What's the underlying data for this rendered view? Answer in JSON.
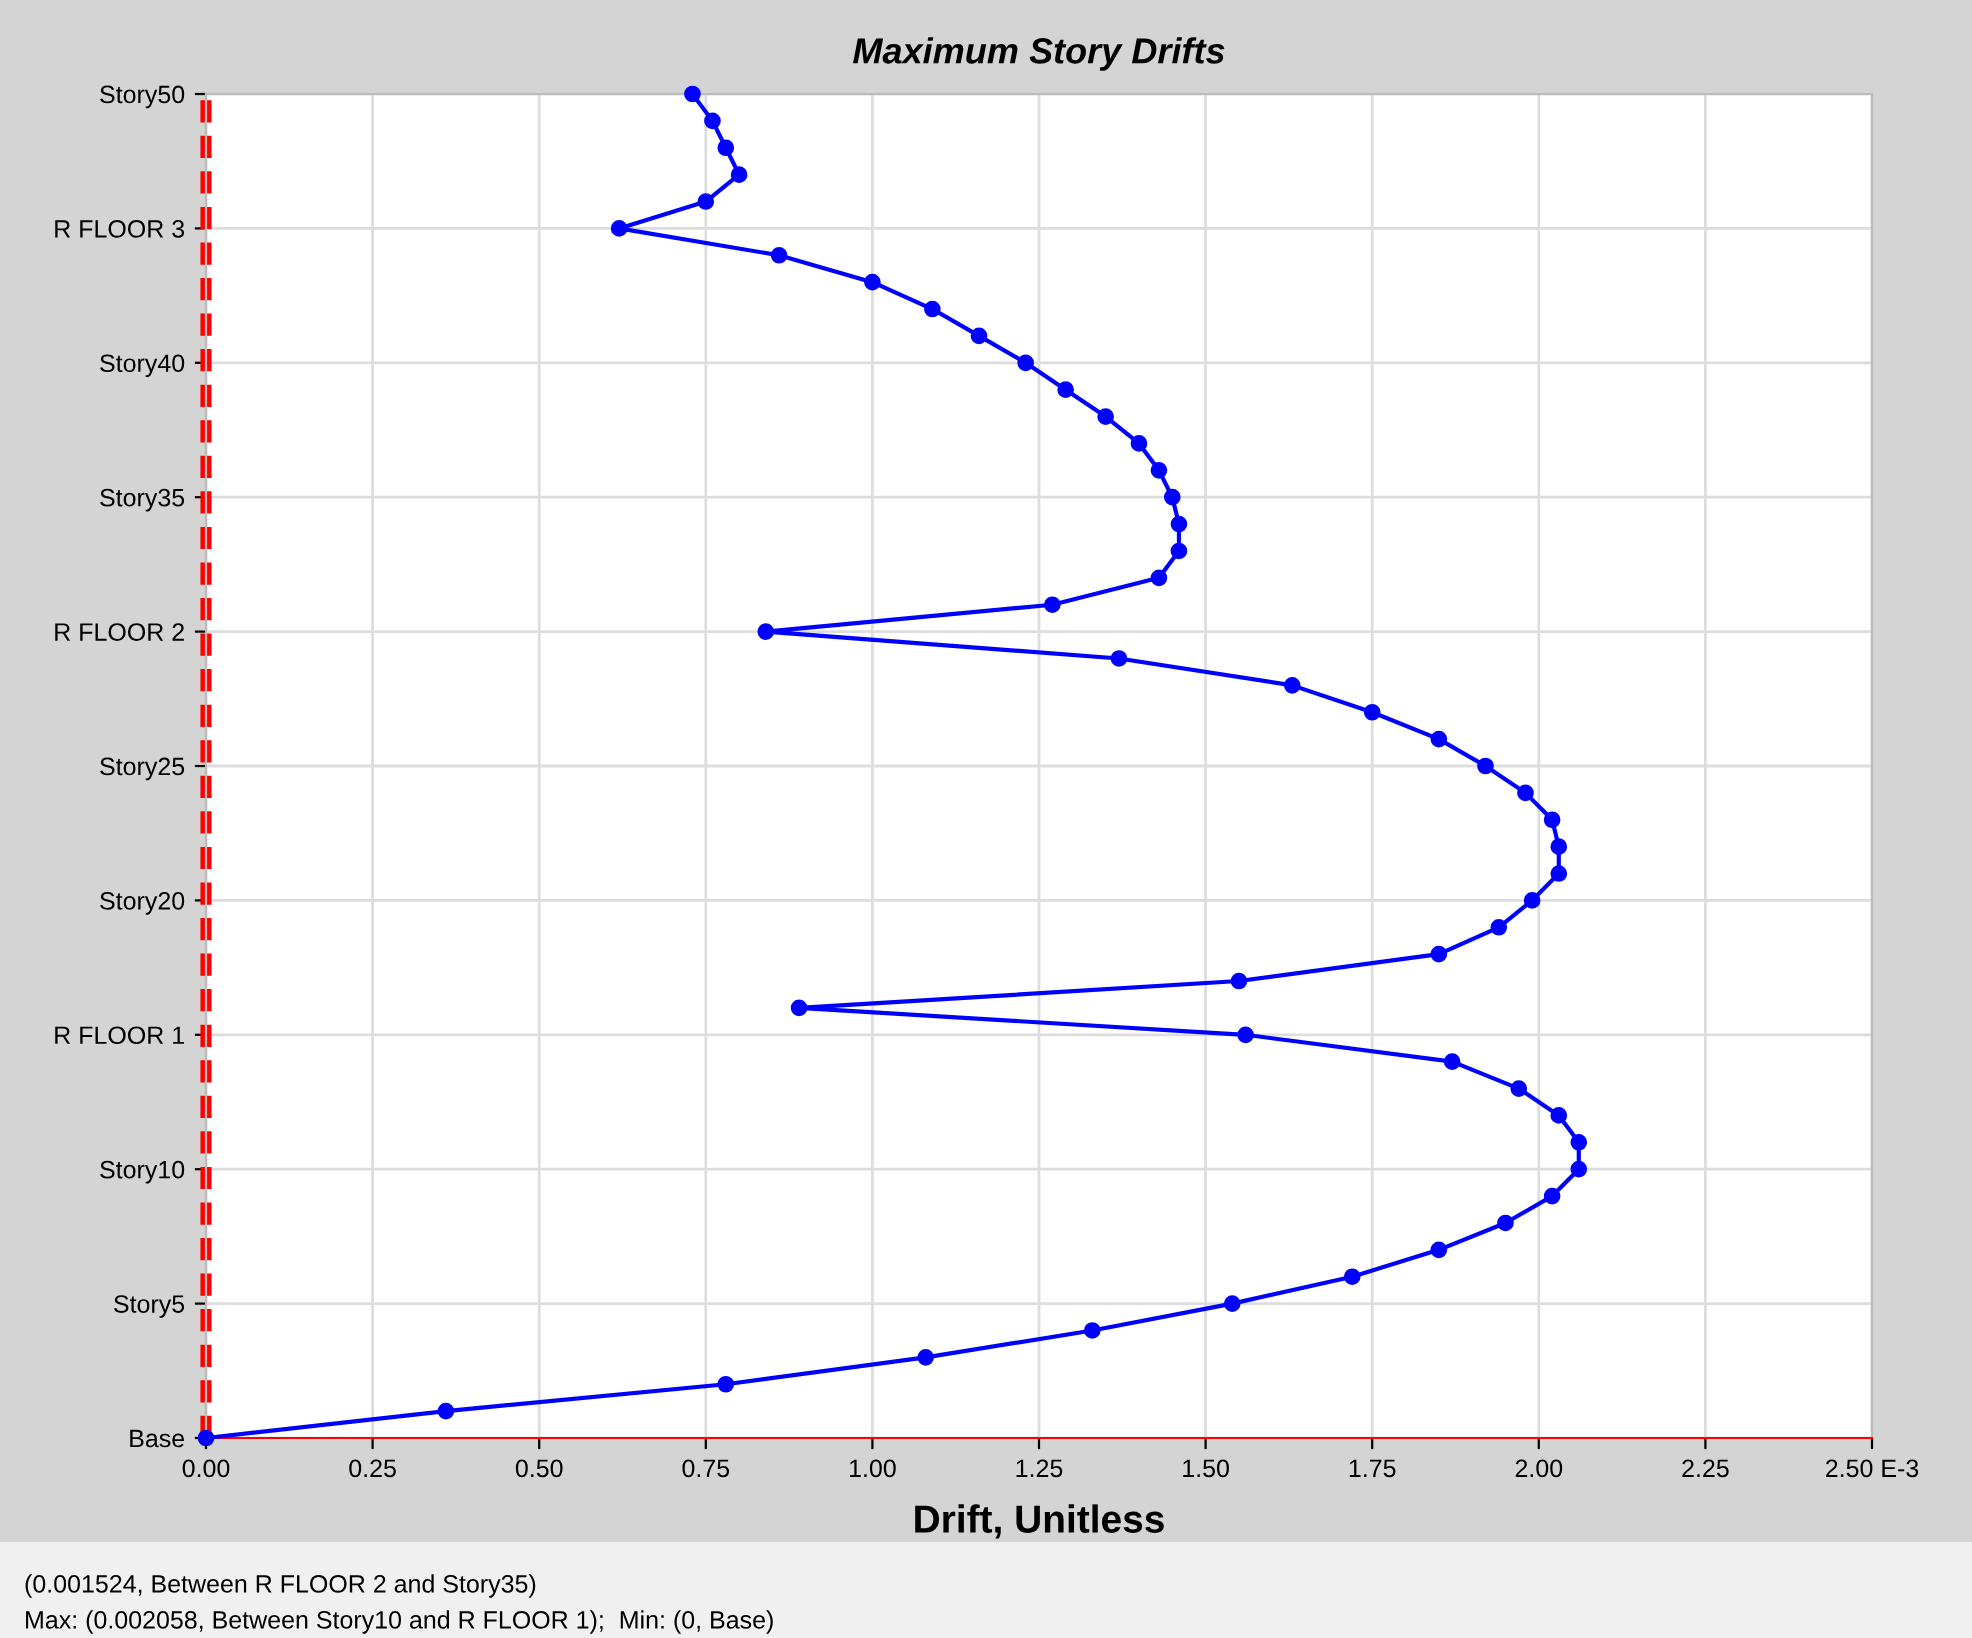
{
  "chart_data": {
    "type": "line",
    "orientation": "horizontal",
    "title": "Maximum Story Drifts",
    "xlabel": "Drift, Unitless",
    "xlim": [
      0,
      2.5
    ],
    "xticks": [
      {
        "value": 0,
        "label": "0.00"
      },
      {
        "value": 0.25,
        "label": "0.25"
      },
      {
        "value": 0.5,
        "label": "0.50"
      },
      {
        "value": 0.75,
        "label": "0.75"
      },
      {
        "value": 1,
        "label": "1.00"
      },
      {
        "value": 1.25,
        "label": "1.25"
      },
      {
        "value": 1.5,
        "label": "1.50"
      },
      {
        "value": 1.75,
        "label": "1.75"
      },
      {
        "value": 2,
        "label": "2.00"
      },
      {
        "value": 2.25,
        "label": "2.25"
      },
      {
        "value": 2.5,
        "label": "2.50 E-3"
      }
    ],
    "categories": [
      "Story50",
      null,
      null,
      null,
      null,
      "R FLOOR 3",
      null,
      null,
      null,
      null,
      "Story40",
      null,
      null,
      null,
      null,
      "Story35",
      null,
      null,
      null,
      null,
      "R FLOOR 2",
      null,
      null,
      null,
      null,
      "Story25",
      null,
      null,
      null,
      null,
      "Story20",
      null,
      null,
      null,
      null,
      "R FLOOR 1",
      null,
      null,
      null,
      null,
      "Story10",
      null,
      null,
      null,
      null,
      "Story5",
      null,
      null,
      null,
      null,
      "Base"
    ],
    "grid": true,
    "marker": "circle",
    "line_style": "solid",
    "series": [
      {
        "color": "#0000ff",
        "values": [
          0.73,
          0.76,
          0.78,
          0.8,
          0.75,
          0.62,
          0.86,
          1.0,
          1.09,
          1.16,
          1.23,
          1.29,
          1.35,
          1.4,
          1.43,
          1.45,
          1.46,
          1.46,
          1.43,
          1.27,
          0.84,
          1.37,
          1.63,
          1.75,
          1.85,
          1.92,
          1.98,
          2.02,
          2.03,
          2.03,
          1.99,
          1.94,
          1.85,
          1.55,
          0.89,
          1.56,
          1.87,
          1.97,
          2.03,
          2.06,
          2.06,
          2.02,
          1.95,
          1.85,
          1.72,
          1.54,
          1.33,
          1.08,
          0.78,
          0.36,
          0
        ]
      }
    ],
    "ref_lines": [
      {
        "axis": "x",
        "value": 0,
        "color": "#ff0000",
        "line_style": "dashed"
      }
    ],
    "annotations": [
      "(0.001524, Between R FLOOR 2 and Story35)",
      "Max: (0.002058, Between Story10 and R FLOOR 1);  Min: (0, Base)"
    ]
  }
}
